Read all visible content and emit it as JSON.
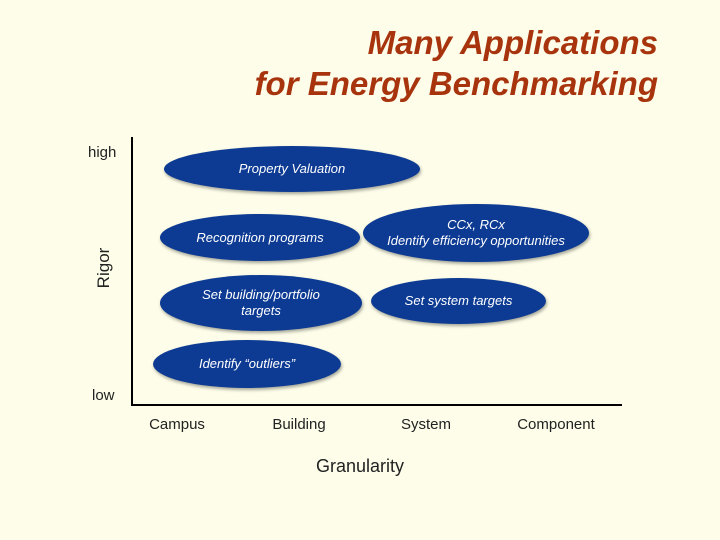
{
  "title": {
    "line1": "Many Applications",
    "line2": "for Energy Benchmarking"
  },
  "y_axis": {
    "label": "Rigor",
    "high": "high",
    "low": "low"
  },
  "x_axis": {
    "label": "Granularity",
    "ticks": [
      "Campus",
      "Building",
      "System",
      "Component"
    ]
  },
  "applications": {
    "property_valuation": "Property Valuation",
    "recognition_programs": "Recognition programs",
    "ccx_line1": "CCx, RCx",
    "ccx_line2": "Identify efficiency opportunities",
    "set_building_line1": "Set building/portfolio",
    "set_building_line2": "targets",
    "set_system": "Set system targets",
    "identify_outliers": "Identify “outliers”"
  },
  "colors": {
    "title": "#a8340e",
    "ellipse_fill": "#0d3b93",
    "background": "#fdfde9"
  }
}
